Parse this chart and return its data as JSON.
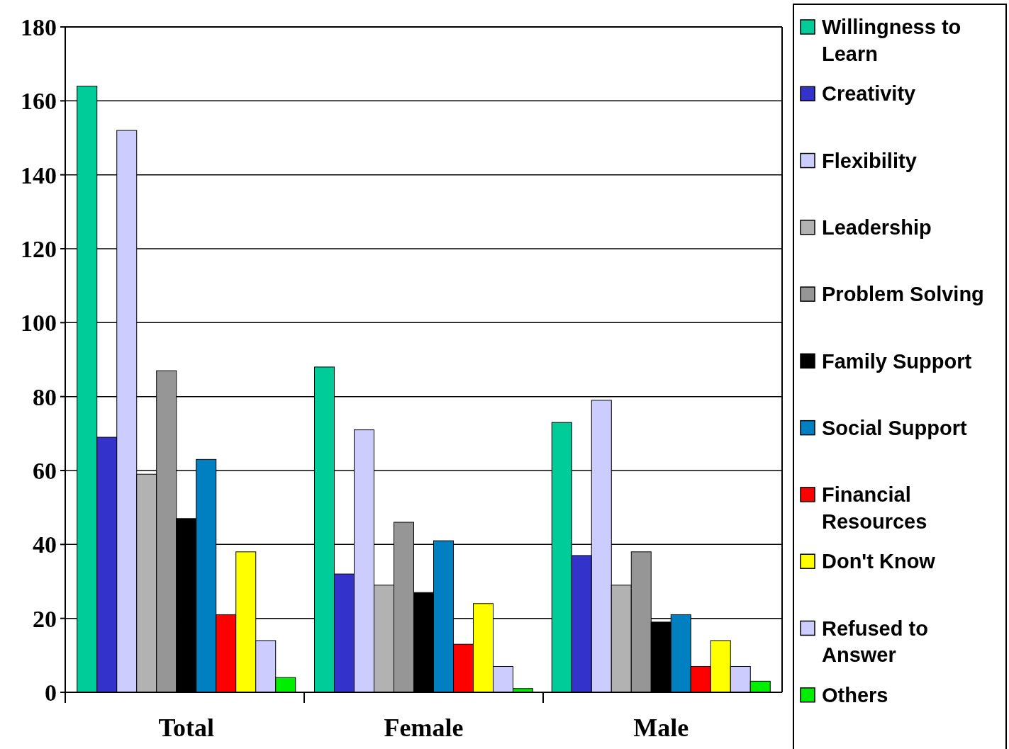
{
  "chart_data": {
    "type": "bar",
    "categories": [
      "Total",
      "Female",
      "Male"
    ],
    "series": [
      {
        "name": "Willingness to Learn",
        "color": "#00cc99",
        "values": [
          164,
          88,
          73
        ]
      },
      {
        "name": "Creativity",
        "color": "#3333cc",
        "values": [
          69,
          32,
          37
        ]
      },
      {
        "name": "Flexibility",
        "color": "#ccccff",
        "values": [
          152,
          71,
          79
        ]
      },
      {
        "name": "Leadership",
        "color": "#b2b2b2",
        "values": [
          59,
          29,
          29
        ]
      },
      {
        "name": "Problem Solving",
        "color": "#969696",
        "values": [
          87,
          46,
          38
        ]
      },
      {
        "name": "Family Support",
        "color": "#000000",
        "values": [
          47,
          27,
          19
        ]
      },
      {
        "name": "Social Support",
        "color": "#0080c0",
        "values": [
          63,
          41,
          21
        ]
      },
      {
        "name": "Financial Resources",
        "color": "#ff0000",
        "values": [
          21,
          13,
          7
        ]
      },
      {
        "name": "Don't Know",
        "color": "#ffff00",
        "values": [
          38,
          24,
          14
        ]
      },
      {
        "name": "Refused to Answer",
        "color": "#ccccff",
        "values": [
          14,
          7,
          7
        ]
      },
      {
        "name": "Others",
        "color": "#00ee00",
        "values": [
          4,
          1,
          3
        ]
      }
    ],
    "ylim": [
      0,
      180
    ],
    "yticks": [
      0,
      20,
      40,
      60,
      80,
      100,
      120,
      140,
      160,
      180
    ],
    "grid": "y",
    "legend": "right"
  }
}
